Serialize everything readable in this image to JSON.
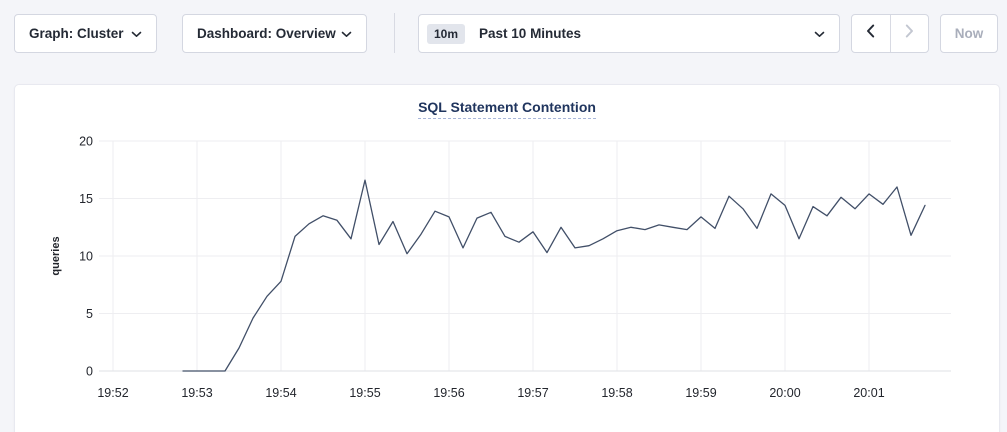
{
  "toolbar": {
    "graph_dropdown_label": "Graph: Cluster",
    "dashboard_dropdown_label": "Dashboard: Overview",
    "time_window_badge": "10m",
    "time_window_label": "Past 10 Minutes",
    "now_button_label": "Now"
  },
  "icons": {
    "chevron_down": "chevron-down",
    "chevron_left": "chevron-left",
    "chevron_right": "chevron-right"
  },
  "colors": {
    "page_bg": "#f4f5f9",
    "panel_bg": "#ffffff",
    "title_navy": "#20355e",
    "line": "#414f68",
    "grid": "#eeeef1",
    "enabled_arrow": "#242a35",
    "disabled_arrow": "#c3c7d1",
    "disabled_text": "#a9aebb"
  },
  "chart_data": {
    "type": "line",
    "title": "SQL Statement Contention",
    "xlabel": "",
    "ylabel": "queries",
    "ylim": [
      0,
      20
    ],
    "yticks": [
      0,
      5,
      10,
      15,
      20
    ],
    "xticks": [
      "19:52",
      "19:53",
      "19:54",
      "19:55",
      "19:56",
      "19:57",
      "19:58",
      "19:59",
      "20:00",
      "20:01"
    ],
    "grid": true,
    "legend": "none",
    "series": [
      {
        "name": "queries",
        "color": "#414f68",
        "start_time": "19:52:50",
        "interval_seconds": 10,
        "values": [
          0,
          0,
          0,
          0,
          2,
          4.6,
          6.5,
          7.8,
          11.7,
          12.8,
          13.5,
          13.1,
          11.5,
          16.6,
          11,
          13,
          10.2,
          11.9,
          13.9,
          13.4,
          10.7,
          13.3,
          13.8,
          11.7,
          11.2,
          12.1,
          10.3,
          12.5,
          10.7,
          10.9,
          11.5,
          12.2,
          12.5,
          12.3,
          12.7,
          12.5,
          12.3,
          13.4,
          12.4,
          15.2,
          14.1,
          12.4,
          15.4,
          14.4,
          11.5,
          14.3,
          13.5,
          15.1,
          14.1,
          15.4,
          14.5,
          16,
          11.8,
          14.4
        ]
      }
    ]
  }
}
